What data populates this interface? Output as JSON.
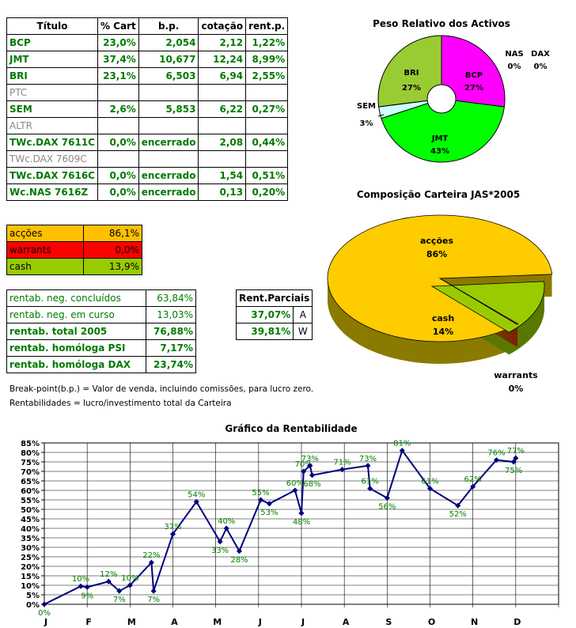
{
  "portfolio_table": {
    "headers": [
      "Título",
      "% Cart",
      "b.p.",
      "cotação",
      "rent.p."
    ],
    "rows": [
      {
        "titulo": "BCP",
        "cart": "23,0%",
        "bp": "2,054",
        "cotacao": "2,12",
        "rent": "1,22%",
        "style": "green"
      },
      {
        "titulo": "JMT",
        "cart": "37,4%",
        "bp": "10,677",
        "cotacao": "12,24",
        "rent": "8,99%",
        "style": "green"
      },
      {
        "titulo": "BRI",
        "cart": "23,1%",
        "bp": "6,503",
        "cotacao": "6,94",
        "rent": "2,55%",
        "style": "green"
      },
      {
        "titulo": "PTC",
        "cart": "",
        "bp": "",
        "cotacao": "",
        "rent": "",
        "style": "gray"
      },
      {
        "titulo": "SEM",
        "cart": "2,6%",
        "bp": "5,853",
        "cotacao": "6,22",
        "rent": "0,27%",
        "style": "green"
      },
      {
        "titulo": "ALTR",
        "cart": "",
        "bp": "",
        "cotacao": "",
        "rent": "",
        "style": "gray"
      },
      {
        "titulo": "TWc.DAX 7611C",
        "cart": "0,0%",
        "bp": "encerrado",
        "cotacao": "2,08",
        "rent": "0,44%",
        "style": "green"
      },
      {
        "titulo": "TWc.DAX 7609C",
        "cart": "",
        "bp": "",
        "cotacao": "",
        "rent": "",
        "style": "gray"
      },
      {
        "titulo": "TWc.DAX 7616C",
        "cart": "0,0%",
        "bp": "encerrado",
        "cotacao": "1,54",
        "rent": "0,51%",
        "style": "green"
      },
      {
        "titulo": "Wc.NAS 7616Z",
        "cart": "0,0%",
        "bp": "encerrado",
        "cotacao": "0,13",
        "rent": "0,20%",
        "style": "green"
      }
    ]
  },
  "allocation_table": {
    "rows": [
      {
        "label": "acções",
        "value": "86,1%",
        "color": "#ffc000"
      },
      {
        "label": "warrants",
        "value": "0,0%",
        "color": "#ff0000"
      },
      {
        "label": "cash",
        "value": "13,9%",
        "color": "#99cc00"
      }
    ]
  },
  "returns_table": {
    "rows": [
      {
        "label": "rentab. neg. concluídos",
        "value": "63,84%",
        "bold": false
      },
      {
        "label": "rentab. neg. em curso",
        "value": "13,03%",
        "bold": false
      },
      {
        "label": "rentab. total 2005",
        "value": "76,88%",
        "bold": true
      },
      {
        "label": "rentab. homóloga PSI",
        "value": "7,17%",
        "bold": true
      },
      {
        "label": "rentab. homóloga DAX",
        "value": "23,74%",
        "bold": true
      }
    ]
  },
  "partial_table": {
    "header": "Rent.Parciais",
    "rows": [
      {
        "value": "37,07%",
        "letter": "A"
      },
      {
        "value": "39,81%",
        "letter": "W"
      }
    ]
  },
  "notes": {
    "breakpoint": "Break-point(b.p.) = Valor de venda, incluindo comissões, para lucro zero.",
    "rentab": "Rentabilidades = lucro/investimento total da Carteira"
  },
  "chart_data": [
    {
      "type": "pie",
      "title": "Peso Relativo dos Activos",
      "slices": [
        {
          "label": "BCP",
          "value": 27,
          "text": "27%",
          "color": "#ff00ff"
        },
        {
          "label": "JMT",
          "value": 43,
          "text": "43%",
          "color": "#00ff00"
        },
        {
          "label": "SEM",
          "value": 3,
          "text": "3%",
          "color": "#ccffff"
        },
        {
          "label": "BRI",
          "value": 27,
          "text": "27%",
          "color": "#99cc33"
        },
        {
          "label": "NAS",
          "value": 0,
          "text": "0%",
          "color": "#888888"
        },
        {
          "label": "DAX",
          "value": 0,
          "text": "0%",
          "color": "#888888"
        }
      ]
    },
    {
      "type": "pie",
      "title": "Composição Carteira JAS*2005",
      "slices": [
        {
          "label": "acções",
          "value": 86,
          "text": "86%",
          "color": "#ffcc00"
        },
        {
          "label": "cash",
          "value": 14,
          "text": "14%",
          "color": "#99cc00"
        },
        {
          "label": "warrants",
          "value": 0,
          "text": "0%",
          "color": "#ff0000"
        }
      ]
    },
    {
      "type": "line",
      "title": "Gráfico da Rentabilidade",
      "ylim": [
        0,
        85
      ],
      "yticks": [
        "0%",
        "5%",
        "10%",
        "15%",
        "20%",
        "25%",
        "30%",
        "35%",
        "40%",
        "45%",
        "50%",
        "55%",
        "60%",
        "65%",
        "70%",
        "75%",
        "80%",
        "85%"
      ],
      "month_labels": [
        "J",
        "F",
        "M",
        "A",
        "M",
        "J",
        "J",
        "A",
        "S",
        "O",
        "N",
        "D"
      ],
      "series": [
        {
          "color": "#000080",
          "points": [
            {
              "x": 0.0,
              "y": 0,
              "label": "0%"
            },
            {
              "x": 0.85,
              "y": 9.5,
              "label": "10%"
            },
            {
              "x": 1.0,
              "y": 9,
              "label": "9%"
            },
            {
              "x": 1.5,
              "y": 12,
              "label": "12%"
            },
            {
              "x": 1.75,
              "y": 7,
              "label": "7%"
            },
            {
              "x": 2.0,
              "y": 10,
              "label": "10%"
            },
            {
              "x": 2.5,
              "y": 22,
              "label": "22%"
            },
            {
              "x": 2.55,
              "y": 7,
              "label": "7%"
            },
            {
              "x": 3.0,
              "y": 37,
              "label": "37%"
            },
            {
              "x": 3.55,
              "y": 54,
              "label": "54%"
            },
            {
              "x": 4.1,
              "y": 33,
              "label": "33%"
            },
            {
              "x": 4.25,
              "y": 40,
              "label": "40%"
            },
            {
              "x": 4.55,
              "y": 28,
              "label": "28%"
            },
            {
              "x": 5.05,
              "y": 55,
              "label": "55%"
            },
            {
              "x": 5.25,
              "y": 53,
              "label": "53%"
            },
            {
              "x": 5.85,
              "y": 60,
              "label": "60%"
            },
            {
              "x": 6.0,
              "y": 48,
              "label": "48%"
            },
            {
              "x": 6.05,
              "y": 70,
              "label": "70%"
            },
            {
              "x": 6.2,
              "y": 73,
              "label": "73%"
            },
            {
              "x": 6.25,
              "y": 68,
              "label": "68%"
            },
            {
              "x": 6.95,
              "y": 71,
              "label": "71%"
            },
            {
              "x": 7.55,
              "y": 73,
              "label": "73%"
            },
            {
              "x": 7.6,
              "y": 61,
              "label": "61%"
            },
            {
              "x": 8.0,
              "y": 56,
              "label": "56%"
            },
            {
              "x": 8.35,
              "y": 81,
              "label": "81%"
            },
            {
              "x": 9.0,
              "y": 61,
              "label": "61%"
            },
            {
              "x": 9.65,
              "y": 52,
              "label": "52%"
            },
            {
              "x": 10.0,
              "y": 62,
              "label": "62%"
            },
            {
              "x": 10.55,
              "y": 76,
              "label": "76%"
            },
            {
              "x": 10.95,
              "y": 75,
              "label": "75%"
            },
            {
              "x": 11.0,
              "y": 77,
              "label": "77%"
            }
          ]
        }
      ]
    }
  ]
}
